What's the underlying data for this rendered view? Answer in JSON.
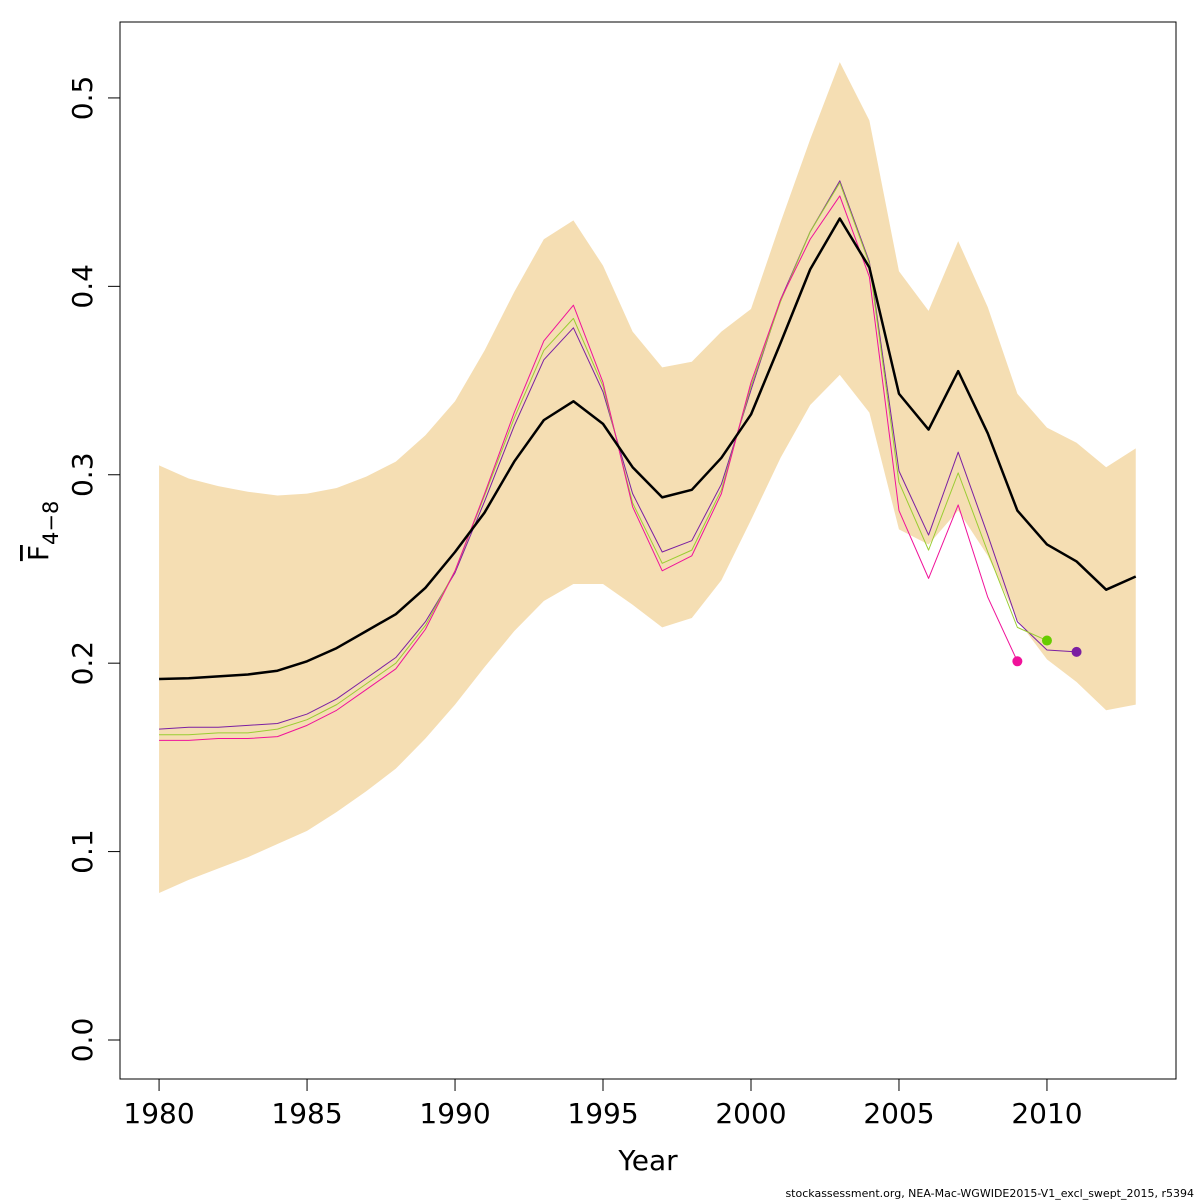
{
  "chart_data": {
    "type": "line",
    "xlabel": "Year",
    "ylabel": "F",
    "ylabel_sub": "4−8",
    "footer": "stockassessment.org, NEA-Mac-WGWIDE2015-V1_excl_swept_2015, r5394",
    "xlim": [
      1978.68,
      2014.36
    ],
    "ylim": [
      -0.0207,
      0.5403
    ],
    "xticks": [
      1980,
      1985,
      1990,
      1995,
      2000,
      2005,
      2010
    ],
    "yticks": [
      {
        "value": 0,
        "label": "0.0"
      },
      0.1,
      0.2,
      0.3,
      0.4,
      0.5
    ],
    "x": [
      1980,
      1981,
      1982,
      1983,
      1984,
      1985,
      1986,
      1987,
      1988,
      1989,
      1990,
      1991,
      1992,
      1993,
      1994,
      1995,
      1996,
      1997,
      1998,
      1999,
      2000,
      2001,
      2002,
      2003,
      2004,
      2005,
      2006,
      2007,
      2008,
      2009,
      2010,
      2011,
      2012,
      2013
    ],
    "band": {
      "color": "#f5deb3",
      "upper": [
        0.305,
        0.298,
        0.294,
        0.291,
        0.289,
        0.29,
        0.293,
        0.299,
        0.307,
        0.321,
        0.339,
        0.366,
        0.397,
        0.425,
        0.435,
        0.411,
        0.376,
        0.357,
        0.36,
        0.376,
        0.388,
        0.434,
        0.478,
        0.519,
        0.488,
        0.408,
        0.387,
        0.424,
        0.389,
        0.343,
        0.325,
        0.317,
        0.304,
        0.314
      ],
      "lower": [
        0.078,
        0.085,
        0.091,
        0.097,
        0.104,
        0.111,
        0.121,
        0.132,
        0.144,
        0.16,
        0.178,
        0.198,
        0.217,
        0.233,
        0.242,
        0.242,
        0.231,
        0.219,
        0.224,
        0.244,
        0.276,
        0.309,
        0.337,
        0.353,
        0.333,
        0.271,
        0.263,
        0.281,
        0.257,
        0.223,
        0.202,
        0.19,
        0.175,
        0.178
      ]
    },
    "series": [
      {
        "color": "#7b1fa2",
        "width": 1,
        "end_marker": true,
        "values": [
          0.165,
          0.166,
          0.166,
          0.167,
          0.168,
          0.173,
          0.181,
          0.192,
          0.203,
          0.222,
          0.248,
          0.286,
          0.326,
          0.361,
          0.378,
          0.344,
          0.29,
          0.259,
          0.265,
          0.295,
          0.345,
          0.393,
          0.429,
          0.456,
          0.413,
          0.302,
          0.268,
          0.312,
          0.268,
          0.222,
          0.207,
          0.206,
          null,
          null
        ]
      },
      {
        "color": "#9acd32",
        "marker_color": "#66cc00",
        "width": 1,
        "end_marker": true,
        "values": [
          0.162,
          0.162,
          0.163,
          0.163,
          0.165,
          0.17,
          0.178,
          0.189,
          0.2,
          0.22,
          0.249,
          0.289,
          0.33,
          0.366,
          0.383,
          0.347,
          0.285,
          0.253,
          0.26,
          0.292,
          0.347,
          0.392,
          0.429,
          0.455,
          0.412,
          0.296,
          0.26,
          0.301,
          0.259,
          0.219,
          0.212,
          null,
          null,
          null
        ]
      },
      {
        "color": "#f0129a",
        "width": 1,
        "end_marker": true,
        "values": [
          0.159,
          0.159,
          0.16,
          0.16,
          0.161,
          0.167,
          0.175,
          0.186,
          0.197,
          0.218,
          0.249,
          0.29,
          0.333,
          0.371,
          0.39,
          0.349,
          0.283,
          0.249,
          0.257,
          0.29,
          0.349,
          0.393,
          0.425,
          0.448,
          0.405,
          0.281,
          0.245,
          0.284,
          0.235,
          0.201,
          null,
          null,
          null,
          null
        ]
      },
      {
        "color": "#000000",
        "width": 2.5,
        "end_marker": false,
        "values": [
          0.1916,
          0.192,
          0.193,
          0.194,
          0.196,
          0.201,
          0.208,
          0.217,
          0.226,
          0.24,
          0.259,
          0.28,
          0.307,
          0.329,
          0.339,
          0.327,
          0.304,
          0.288,
          0.292,
          0.309,
          0.332,
          0.37,
          0.409,
          0.436,
          0.41,
          0.343,
          0.324,
          0.355,
          0.322,
          0.281,
          0.263,
          0.254,
          0.239,
          0.246
        ]
      }
    ]
  }
}
